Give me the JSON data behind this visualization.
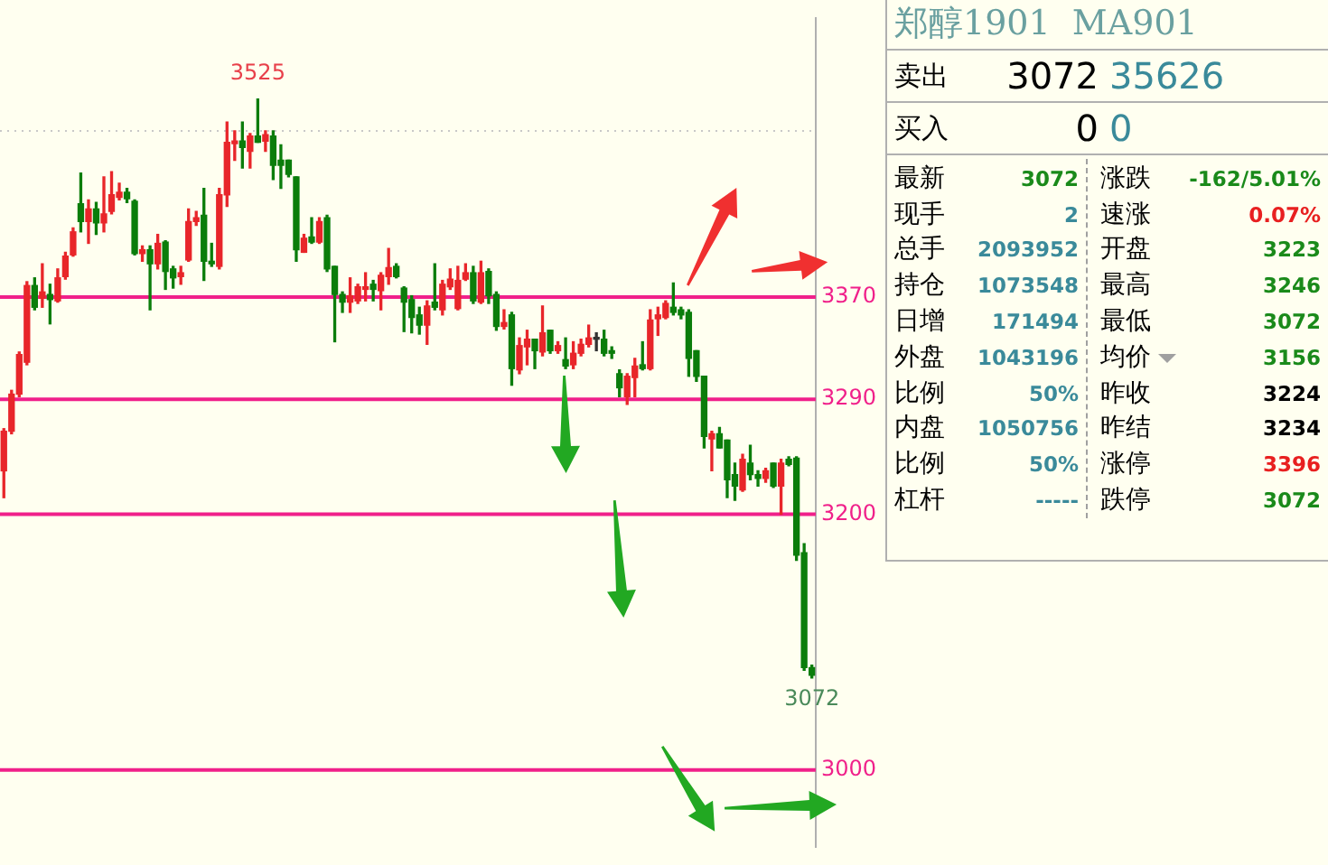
{
  "chart_data": [
    {
      "type": "candlestick",
      "ylim": [
        2940,
        3588
      ],
      "yticks": [
        3000,
        3200,
        3290,
        3370
      ],
      "categories": [
        null,
        null,
        null,
        null,
        null,
        null,
        null,
        null,
        null,
        null,
        null,
        null,
        null,
        null,
        null,
        null,
        null,
        null,
        null,
        null,
        null,
        null,
        null,
        null,
        null,
        null,
        null,
        null,
        null,
        null,
        null,
        null,
        null,
        null,
        null,
        null,
        null,
        null,
        null,
        null,
        null,
        null,
        null,
        null,
        null,
        null,
        null,
        null,
        null,
        null,
        null,
        null,
        null,
        null,
        null,
        null,
        null,
        null,
        null,
        null,
        null,
        null,
        null,
        null,
        null,
        null,
        null,
        null,
        null,
        null,
        null,
        null,
        null,
        null,
        null,
        null,
        null,
        null,
        null,
        null,
        null,
        null,
        null,
        null,
        null,
        null,
        null,
        null,
        null,
        null,
        null,
        null,
        null,
        null,
        null,
        null,
        null,
        null,
        null,
        null,
        null,
        null,
        null,
        null,
        null,
        null
      ],
      "ohlc": [
        [
          3234,
          3267,
          3213,
          3265
        ],
        [
          3265,
          3297,
          3263,
          3294
        ],
        [
          3294,
          3327,
          3292,
          3325
        ],
        [
          3319,
          3382,
          3317,
          3379
        ],
        [
          3379,
          3385,
          3360,
          3362
        ],
        [
          3369,
          3396,
          3362,
          3374
        ],
        [
          3372,
          3380,
          3349,
          3368
        ],
        [
          3367,
          3392,
          3366,
          3385
        ],
        [
          3386,
          3405,
          3384,
          3402
        ],
        [
          3403,
          3424,
          3402,
          3421
        ],
        [
          3443,
          3467,
          3421,
          3429
        ],
        [
          3429,
          3446,
          3412,
          3439
        ],
        [
          3439,
          3444,
          3419,
          3428
        ],
        [
          3428,
          3464,
          3421,
          3435
        ],
        [
          3437,
          3468,
          3435,
          3450
        ],
        [
          3448,
          3459,
          3446,
          3452
        ],
        [
          3452,
          3455,
          3444,
          3447
        ],
        [
          3445,
          3446,
          3403,
          3404
        ],
        [
          3404,
          3410,
          3398,
          3407
        ],
        [
          3407,
          3410,
          3360,
          3396
        ],
        [
          3396,
          3419,
          3392,
          3412
        ],
        [
          3413,
          3414,
          3376,
          3390
        ],
        [
          3392,
          3394,
          3377,
          3385
        ],
        [
          3386,
          3394,
          3380,
          3389
        ],
        [
          3399,
          3439,
          3398,
          3429
        ],
        [
          3429,
          3437,
          3426,
          3432
        ],
        [
          3434,
          3455,
          3383,
          3398
        ],
        [
          3398,
          3412,
          3394,
          3396
        ],
        [
          3394,
          3455,
          3392,
          3450
        ],
        [
          3450,
          3507,
          3441,
          3491
        ],
        [
          3490,
          3500,
          3477,
          3492
        ],
        [
          3492,
          3507,
          3471,
          3487
        ],
        [
          3484,
          3498,
          3471,
          3496
        ],
        [
          3496,
          3525,
          3491,
          3491
        ],
        [
          3492,
          3500,
          3484,
          3497
        ],
        [
          3496,
          3500,
          3462,
          3473
        ],
        [
          3477,
          3489,
          3455,
          3473
        ],
        [
          3477,
          3477,
          3464,
          3466
        ],
        [
          3464,
          3464,
          3398,
          3407
        ],
        [
          3405,
          3419,
          3405,
          3416
        ],
        [
          3417,
          3432,
          3412,
          3413
        ],
        [
          3413,
          3432,
          3412,
          3429
        ],
        [
          3432,
          3434,
          3390,
          3392
        ],
        [
          3394,
          3394,
          3335,
          3372
        ],
        [
          3372,
          3374,
          3358,
          3366
        ],
        [
          3366,
          3385,
          3358,
          3371
        ],
        [
          3367,
          3380,
          3365,
          3378
        ],
        [
          3376,
          3389,
          3367,
          3378
        ],
        [
          3380,
          3383,
          3367,
          3376
        ],
        [
          3375,
          3389,
          3360,
          3387
        ],
        [
          3386,
          3408,
          3380,
          3393
        ],
        [
          3394,
          3396,
          3385,
          3386
        ],
        [
          3377,
          3378,
          3343,
          3366
        ],
        [
          3368,
          3371,
          3342,
          3354
        ],
        [
          3356,
          3362,
          3341,
          3348
        ],
        [
          3348,
          3367,
          3333,
          3363
        ],
        [
          3366,
          3396,
          3360,
          3362
        ],
        [
          3360,
          3383,
          3356,
          3380
        ],
        [
          3378,
          3392,
          3376,
          3384
        ],
        [
          3361,
          3394,
          3360,
          3383
        ],
        [
          3384,
          3396,
          3383,
          3389
        ],
        [
          3389,
          3394,
          3365,
          3367
        ],
        [
          3366,
          3398,
          3365,
          3389
        ],
        [
          3390,
          3392,
          3365,
          3371
        ],
        [
          3372,
          3374,
          3344,
          3347
        ],
        [
          3347,
          3360,
          3345,
          3350
        ],
        [
          3356,
          3358,
          3301,
          3314
        ],
        [
          3313,
          3338,
          3310,
          3332
        ],
        [
          3331,
          3344,
          3317,
          3337
        ],
        [
          3337,
          3337,
          3314,
          3328
        ],
        [
          3327,
          3363,
          3324,
          3342
        ],
        [
          3344,
          3344,
          3326,
          3328
        ],
        [
          3328,
          3335,
          3326,
          3332
        ],
        [
          3321,
          3338,
          3314,
          3316
        ],
        [
          3317,
          3335,
          3314,
          3326
        ],
        [
          3326,
          3337,
          3324,
          3333
        ],
        [
          3333,
          3348,
          3331,
          3338
        ],
        [
          3337,
          3342,
          3328,
          3337
        ],
        [
          3337,
          3344,
          3324,
          3326
        ],
        [
          3328,
          3331,
          3322,
          3326
        ],
        [
          3310,
          3313,
          3292,
          3299
        ],
        [
          3292,
          3310,
          3286,
          3308
        ],
        [
          3307,
          3322,
          3292,
          3316
        ],
        [
          3317,
          3335,
          3313,
          3314
        ],
        [
          3314,
          3360,
          3313,
          3352
        ],
        [
          3353,
          3362,
          3340,
          3356
        ],
        [
          3354,
          3367,
          3353,
          3365
        ],
        [
          3362,
          3381,
          3356,
          3358
        ],
        [
          3360,
          3362,
          3353,
          3356
        ],
        [
          3358,
          3360,
          3308,
          3322
        ],
        [
          3328,
          3328,
          3304,
          3308
        ],
        [
          3308,
          3308,
          3252,
          3261
        ],
        [
          3259,
          3265,
          3234,
          3263
        ],
        [
          3263,
          3268,
          3252,
          3252
        ],
        [
          3258,
          3258,
          3213,
          3227
        ],
        [
          3231,
          3240,
          3211,
          3222
        ],
        [
          3219,
          3247,
          3218,
          3243
        ],
        [
          3240,
          3254,
          3227,
          3231
        ],
        [
          3231,
          3234,
          3222,
          3228
        ],
        [
          3228,
          3236,
          3225,
          3234
        ],
        [
          3240,
          3240,
          3221,
          3222
        ],
        [
          3222,
          3243,
          3200,
          3240
        ],
        [
          3243,
          3245,
          3238,
          3239
        ],
        [
          3244,
          3245,
          3164,
          3168
        ],
        [
          3170,
          3177,
          3078,
          3080
        ],
        [
          3080,
          3082,
          3072,
          3074
        ]
      ],
      "colors": [
        "#e8262a",
        "#e8262a",
        "#e8262a",
        "#e8262a",
        "#0b7d0b",
        "#e8262a",
        "#0b7d0b",
        "#e8262a",
        "#e8262a",
        "#e8262a",
        "#0b7d0b",
        "#e8262a",
        "#0b7d0b",
        "#e8262a",
        "#e8262a",
        "#e8262a",
        "#0b7d0b",
        "#0b7d0b",
        "#e8262a",
        "#0b7d0b",
        "#e8262a",
        "#0b7d0b",
        "#0b7d0b",
        "#e8262a",
        "#e8262a",
        "#e8262a",
        "#0b7d0b",
        "#0b7d0b",
        "#e8262a",
        "#e8262a",
        "#e8262a",
        "#0b7d0b",
        "#e8262a",
        "#0b7d0b",
        "#e8262a",
        "#0b7d0b",
        "#0b7d0b",
        "#0b7d0b",
        "#0b7d0b",
        "#e8262a",
        "#0b7d0b",
        "#e8262a",
        "#0b7d0b",
        "#0b7d0b",
        "#0b7d0b",
        "#e8262a",
        "#e8262a",
        "#e8262a",
        "#0b7d0b",
        "#e8262a",
        "#e8262a",
        "#0b7d0b",
        "#0b7d0b",
        "#0b7d0b",
        "#0b7d0b",
        "#e8262a",
        "#0b7d0b",
        "#e8262a",
        "#e8262a",
        "#e8262a",
        "#e8262a",
        "#0b7d0b",
        "#e8262a",
        "#0b7d0b",
        "#0b7d0b",
        "#e8262a",
        "#0b7d0b",
        "#e8262a",
        "#e8262a",
        "#0b7d0b",
        "#e8262a",
        "#0b7d0b",
        "#e8262a",
        "#0b7d0b",
        "#e8262a",
        "#e8262a",
        "#e8262a",
        "#333333",
        "#0b7d0b",
        "#0b7d0b",
        "#0b7d0b",
        "#e8262a",
        "#e8262a",
        "#0b7d0b",
        "#e8262a",
        "#e8262a",
        "#e8262a",
        "#0b7d0b",
        "#0b7d0b",
        "#0b7d0b",
        "#0b7d0b",
        "#0b7d0b",
        "#e8262a",
        "#0b7d0b",
        "#0b7d0b",
        "#0b7d0b",
        "#e8262a",
        "#0b7d0b",
        "#0b7d0b",
        "#e8262a",
        "#0b7d0b",
        "#e8262a",
        "#0b7d0b",
        "#0b7d0b",
        "#0b7d0b",
        "#0b7d0b"
      ],
      "ref_lines": [
        {
          "axis": "y",
          "value": 3500,
          "color": "#c8c8c8",
          "line_style": "dotted"
        },
        {
          "axis": "y",
          "value": 3370,
          "color": "#f0208a"
        },
        {
          "axis": "y",
          "value": 3290,
          "color": "#f0208a"
        },
        {
          "axis": "y",
          "value": 3200,
          "color": "#f0208a"
        },
        {
          "axis": "y",
          "value": 3000,
          "color": "#f0208a"
        }
      ],
      "annotations": [
        {
          "text": "3525",
          "y": 3525
        },
        {
          "text": "3072",
          "y": 3072
        }
      ]
    },
    {
      "type": "other",
      "title": "郑醇1901  MA901",
      "annotations": [
        "卖出",
        "3072",
        "35626",
        "买入",
        "0",
        "0",
        "最新",
        "3072",
        "涨跌",
        "-162/5.01%",
        "现手",
        "2",
        "速涨",
        "0.07%",
        "总手",
        "2093952",
        "开盘",
        "3223",
        "持仓",
        "1073548",
        "最高",
        "3246",
        "日增",
        "171494",
        "最低",
        "3072",
        "外盘",
        "1043196",
        "均价",
        "3156",
        "比例",
        "50%",
        "昨收",
        "3224",
        "内盘",
        "1050756",
        "昨结",
        "3234",
        "比例",
        "50%",
        "涨停",
        "3396",
        "杠杆",
        "-----",
        "跌停",
        "3072"
      ],
      "colors": [
        "#000000",
        "#000000",
        "#3a8a9a",
        "#000000",
        "#000000",
        "#3a8a9a",
        "#000000",
        "#1a8a1a",
        "#000000",
        "#1a8a1a",
        "#000000",
        "#3a8a9a",
        "#000000",
        "#e82020",
        "#000000",
        "#3a8a9a",
        "#000000",
        "#1a8a1a",
        "#000000",
        "#3a8a9a",
        "#000000",
        "#1a8a1a",
        "#000000",
        "#3a8a9a",
        "#000000",
        "#1a8a1a",
        "#000000",
        "#3a8a9a",
        "#000000",
        "#1a8a1a",
        "#000000",
        "#3a8a9a",
        "#000000",
        "#000000",
        "#000000",
        "#3a8a9a",
        "#000000",
        "#000000",
        "#000000",
        "#3a8a9a",
        "#000000",
        "#e82020",
        "#000000",
        "#3a8a9a",
        "#000000",
        "#1a8a1a"
      ]
    }
  ]
}
